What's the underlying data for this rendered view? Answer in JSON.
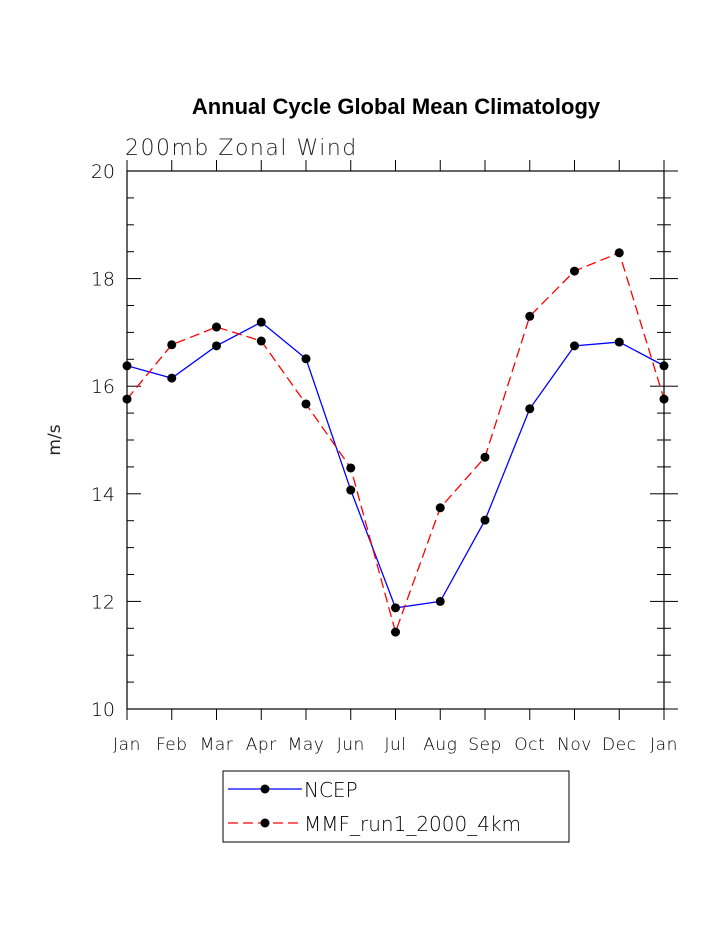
{
  "chart_data": {
    "type": "line",
    "title": "Annual Cycle Global Mean Climatology",
    "subtitle": "200mb Zonal Wind",
    "xlabel": "",
    "ylabel": "m/s",
    "ylim": [
      10,
      20
    ],
    "yticks": [
      10,
      12,
      14,
      16,
      18,
      20
    ],
    "categories": [
      "Jan",
      "Feb",
      "Mar",
      "Apr",
      "May",
      "Jun",
      "Jul",
      "Aug",
      "Sep",
      "Oct",
      "Nov",
      "Dec",
      "Jan"
    ],
    "grid": false,
    "legend_position": "bottom-center",
    "series": [
      {
        "name": "NCEP",
        "color": "#0000ff",
        "dash": "solid",
        "values": [
          16.38,
          16.15,
          16.75,
          17.19,
          16.51,
          14.07,
          11.88,
          12.0,
          13.51,
          15.58,
          16.75,
          16.82,
          16.38
        ]
      },
      {
        "name": "MMF_run1_2000_4km",
        "color": "#ff0000",
        "dash": "dashed",
        "values": [
          15.76,
          16.77,
          17.1,
          16.84,
          15.67,
          14.48,
          11.43,
          13.74,
          14.68,
          17.3,
          18.14,
          18.48,
          15.76
        ]
      }
    ]
  }
}
